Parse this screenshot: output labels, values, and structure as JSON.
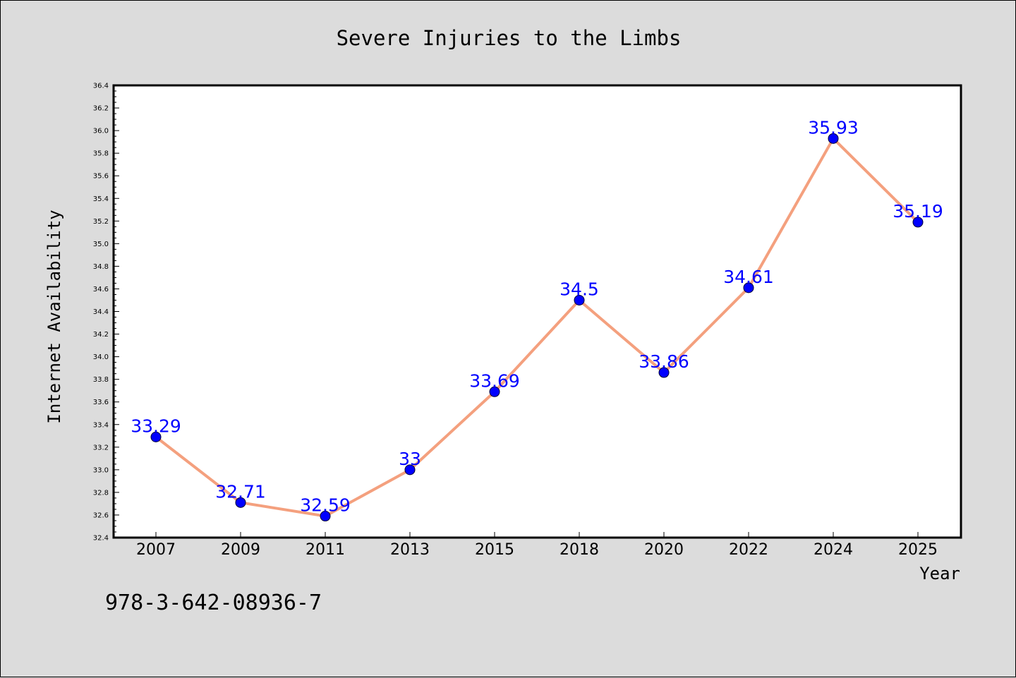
{
  "chart_data": {
    "type": "line",
    "title": "Severe Injuries to the Limbs",
    "xlabel": "Year",
    "ylabel": "Internet Availability",
    "categories": [
      "2007",
      "2009",
      "2011",
      "2013",
      "2015",
      "2018",
      "2020",
      "2022",
      "2024",
      "2025"
    ],
    "series": [
      {
        "values": [
          33.29,
          32.71,
          32.59,
          33,
          33.69,
          34.5,
          33.86,
          34.61,
          35.93,
          35.19
        ],
        "labels": [
          "33.29",
          "32.71",
          "32.59",
          "33",
          "33.69",
          "34.5",
          "33.86",
          "34.61",
          "35.93",
          "35.19"
        ],
        "line_color": "#f4a07e",
        "marker_color": "#0000ff"
      }
    ],
    "ylim": [
      32.4,
      36.4
    ],
    "yticks": [
      "32.4",
      "32.6",
      "32.8",
      "33.0",
      "33.2",
      "33.4",
      "33.6",
      "33.8",
      "34.0",
      "34.2",
      "34.4",
      "34.6",
      "34.8",
      "35.0",
      "35.2",
      "35.4",
      "35.6",
      "35.8",
      "36.0",
      "36.2",
      "36.4"
    ],
    "grid": false,
    "plot_background": "#ffffff",
    "figure_background": "#dcdcdc"
  },
  "footer_text": "978-3-642-08936-7"
}
